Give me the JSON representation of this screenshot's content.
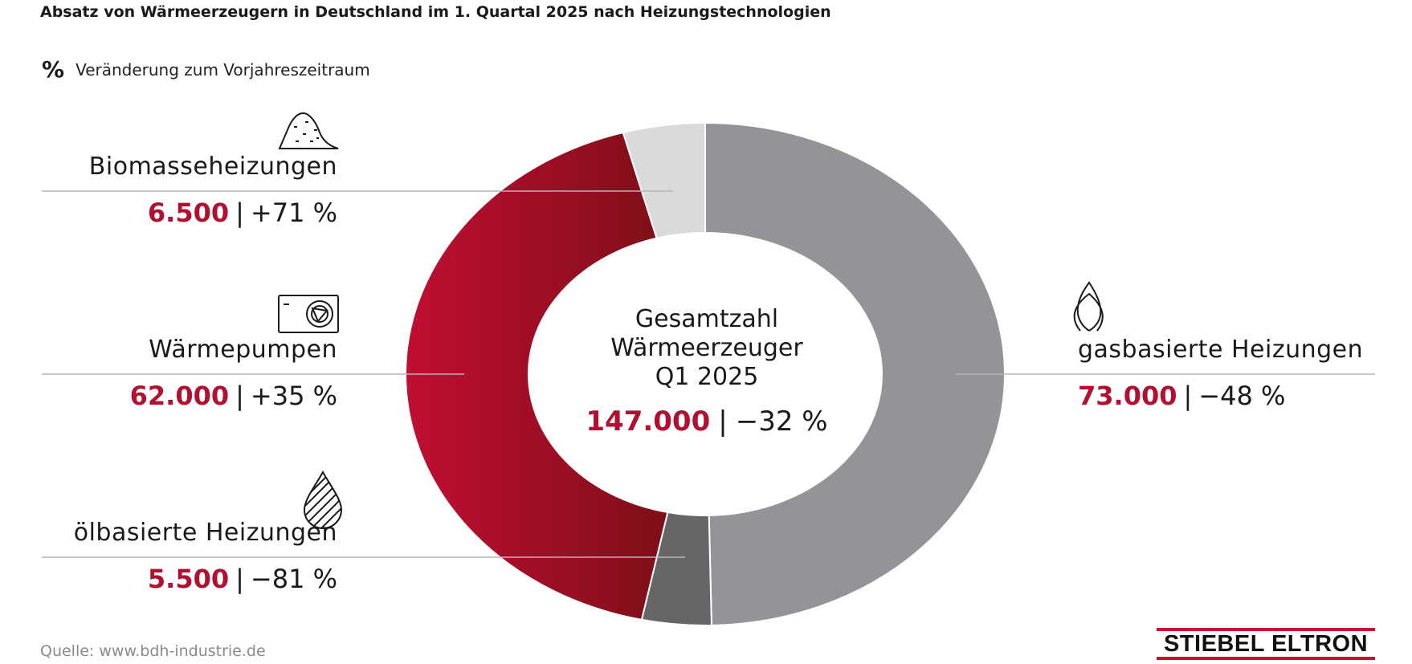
{
  "header": {
    "title": "Absatz von Wärmeerzeugern in Deutschland im 1. Quartal 2025 nach Heizungstechnologien",
    "legend_symbol": "%",
    "legend_text": "Veränderung zum Vorjahreszeitraum"
  },
  "center": {
    "line1": "Gesamtzahl",
    "line2": "Wärmeerzeuger",
    "line3": "Q1 2025",
    "total": "147.000",
    "separator": "|",
    "change": "−32 %"
  },
  "segments": {
    "biomasse": {
      "label": "Biomasseheizungen",
      "value": "6.500",
      "change": "+71 %",
      "icon": "biomass-pile-icon"
    },
    "waermepumpen": {
      "label": "Wärmepumpen",
      "value": "62.000",
      "change": "+35 %",
      "icon": "heat-pump-icon"
    },
    "oel": {
      "label": "ölbasierte Heizungen",
      "value": "5.500",
      "change": "−81 %",
      "icon": "oil-drop-icon"
    },
    "gas": {
      "label": "gasbasierte Heizungen",
      "value": "73.000",
      "change": "−48 %",
      "icon": "gas-flame-icon"
    }
  },
  "chart_data": {
    "type": "pie",
    "variant": "donut",
    "total": 147000,
    "categories": [
      "gasbasierte Heizungen",
      "ölbasierte Heizungen",
      "Wärmepumpen",
      "Biomasseheizungen"
    ],
    "values": [
      73000,
      5500,
      62000,
      6500
    ],
    "changes_percent": [
      -48,
      -81,
      35,
      71
    ],
    "colors": [
      "#939498",
      "#666666",
      "#b11030",
      "#dadadb"
    ]
  },
  "footer": {
    "source": "Quelle: www.bdh-industrie.de",
    "logo": "STIEBEL ELTRON"
  }
}
